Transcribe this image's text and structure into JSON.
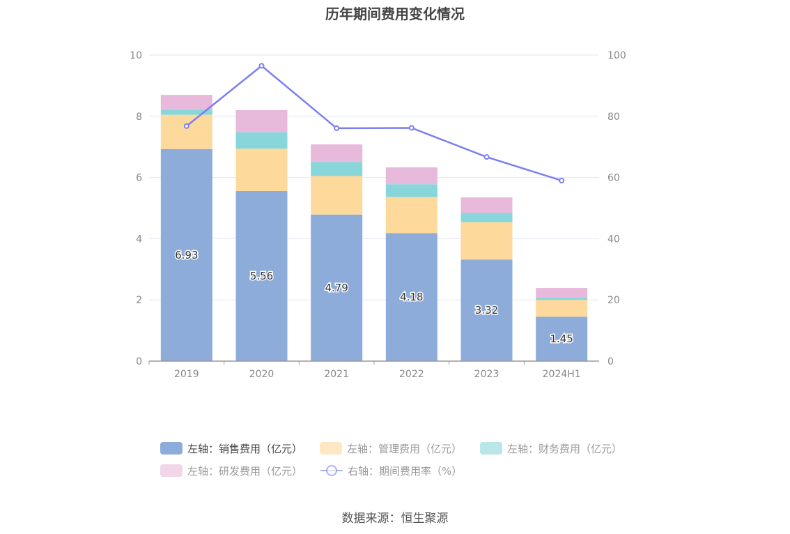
{
  "chart_data": {
    "type": "bar",
    "title": "历年期间费用变化情况",
    "categories": [
      "2019",
      "2020",
      "2021",
      "2022",
      "2023",
      "2024H1"
    ],
    "y_left": {
      "ticks": [
        "0",
        "2",
        "4",
        "6",
        "8",
        "10"
      ],
      "ylim": [
        0,
        10
      ]
    },
    "y_right": {
      "ticks": [
        "0",
        "20",
        "40",
        "60",
        "80",
        "100"
      ],
      "ylim": [
        0,
        100
      ]
    },
    "series": [
      {
        "name": "左轴：销售费用（亿元）",
        "kind": "bar",
        "color": "#8eacd9",
        "values": [
          6.93,
          5.56,
          4.79,
          4.18,
          3.32,
          1.45
        ],
        "labels": [
          "6.93",
          "5.56",
          "4.79",
          "4.18",
          "3.32",
          "1.45"
        ]
      },
      {
        "name": "左轴：管理费用（亿元）",
        "kind": "bar",
        "color": "#fdd99b",
        "values": [
          1.12,
          1.38,
          1.26,
          1.18,
          1.22,
          0.55
        ]
      },
      {
        "name": "左轴：财务费用（亿元）",
        "kind": "bar",
        "color": "#88d6da",
        "values": [
          0.16,
          0.54,
          0.46,
          0.42,
          0.3,
          0.08
        ]
      },
      {
        "name": "左轴：研发费用（亿元）",
        "kind": "bar",
        "color": "#e7b9db",
        "values": [
          0.49,
          0.72,
          0.57,
          0.55,
          0.51,
          0.31
        ]
      },
      {
        "name": "右轴：期间费用率（%）",
        "kind": "line",
        "color": "#7b7ff0",
        "values": [
          76.8,
          96.5,
          76.1,
          76.2,
          66.7,
          59.0
        ]
      }
    ],
    "grid": true,
    "legend_position": "bottom"
  },
  "source": "数据来源：恒生聚源"
}
